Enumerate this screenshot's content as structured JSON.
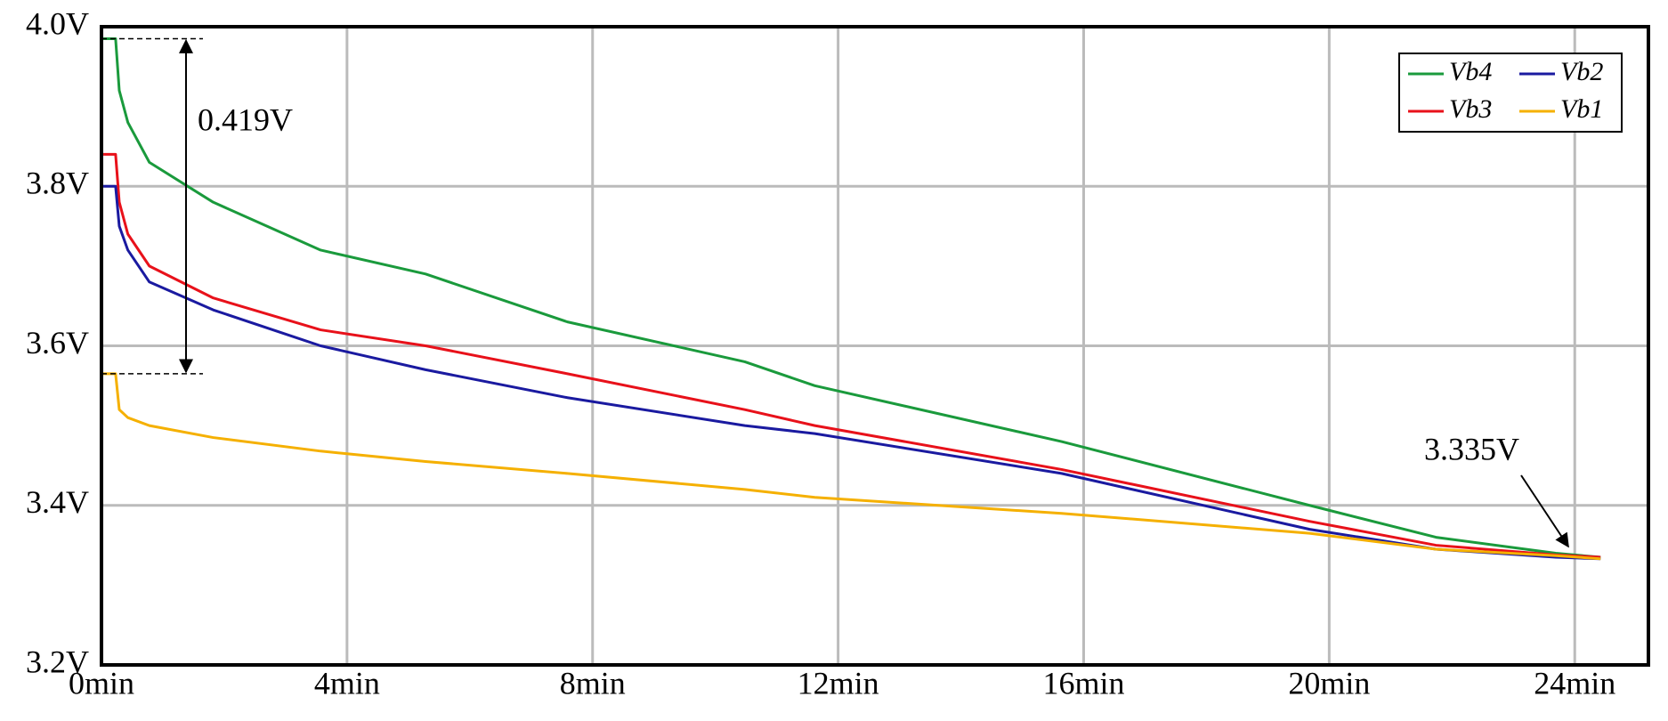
{
  "chart_data": {
    "type": "line",
    "x": [
      0.03,
      0.23,
      0.29,
      0.43,
      0.78,
      1.82,
      3.57,
      5.28,
      7.59,
      10.48,
      11.62,
      15.64,
      19.68,
      21.74,
      23.69,
      24.42
    ],
    "series": [
      {
        "name": "Vb4",
        "color": "#1a9a3c",
        "values": [
          3.985,
          3.985,
          3.92,
          3.88,
          3.83,
          3.78,
          3.72,
          3.69,
          3.63,
          3.58,
          3.55,
          3.48,
          3.4,
          3.36,
          3.34,
          3.335
        ]
      },
      {
        "name": "Vb3",
        "color": "#e8111a",
        "values": [
          3.84,
          3.84,
          3.78,
          3.74,
          3.7,
          3.66,
          3.62,
          3.6,
          3.565,
          3.52,
          3.5,
          3.445,
          3.38,
          3.35,
          3.338,
          3.335
        ]
      },
      {
        "name": "Vb2",
        "color": "#1a1aa0",
        "values": [
          3.8,
          3.8,
          3.75,
          3.72,
          3.68,
          3.645,
          3.6,
          3.57,
          3.535,
          3.5,
          3.49,
          3.44,
          3.37,
          3.345,
          3.335,
          3.333
        ]
      },
      {
        "name": "Vb1",
        "color": "#f5b000",
        "values": [
          3.565,
          3.565,
          3.52,
          3.51,
          3.5,
          3.485,
          3.468,
          3.455,
          3.44,
          3.42,
          3.41,
          3.39,
          3.365,
          3.345,
          3.337,
          3.333
        ]
      }
    ],
    "xlim": [
      0,
      25.2
    ],
    "ylim": [
      3.2,
      4.0
    ],
    "xticks": [
      {
        "value": 0,
        "label": "0min"
      },
      {
        "value": 4,
        "label": "4min"
      },
      {
        "value": 8,
        "label": "8min"
      },
      {
        "value": 12,
        "label": "12min"
      },
      {
        "value": 16,
        "label": "16min"
      },
      {
        "value": 20,
        "label": "20min"
      },
      {
        "value": 24,
        "label": "24min"
      }
    ],
    "yticks": [
      {
        "value": 3.2,
        "label": "3.2V"
      },
      {
        "value": 3.4,
        "label": "3.4V"
      },
      {
        "value": 3.6,
        "label": "3.6V"
      },
      {
        "value": 3.8,
        "label": "3.8V"
      },
      {
        "value": 4.0,
        "label": "4.0V"
      }
    ],
    "grid": true,
    "legend": "upper right",
    "annotations": [
      "0.419V",
      "3.335V"
    ]
  }
}
